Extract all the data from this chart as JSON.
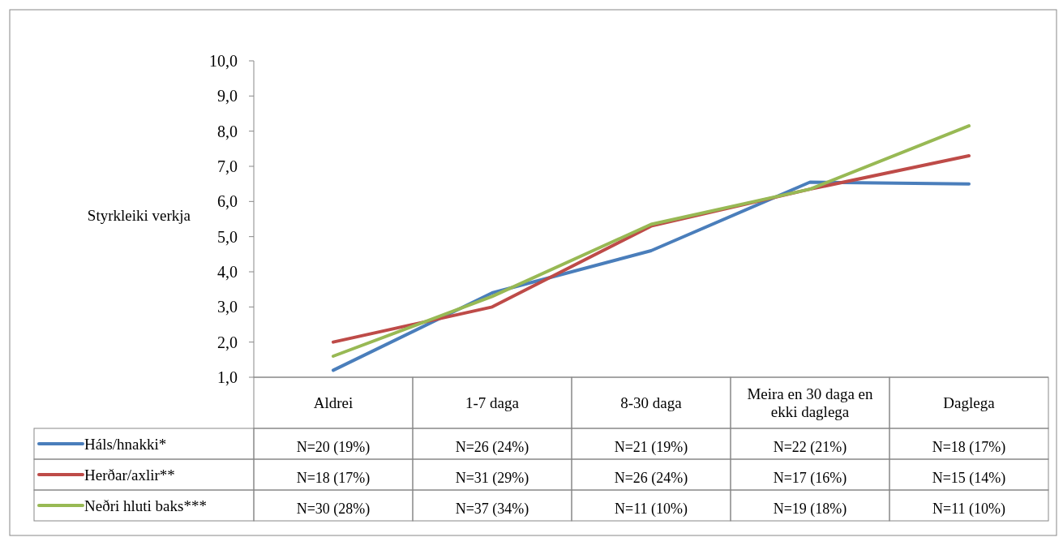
{
  "chart_data": {
    "type": "line",
    "ylabel": "Styrkleiki verkja",
    "categories": [
      "Aldrei",
      "1-7 daga",
      "8-30 daga",
      "Meira en 30 daga en ekki daglega",
      "Daglega"
    ],
    "series": [
      {
        "name": "Háls/hnakki*",
        "color": "#4a7ebb",
        "values": [
          1.2,
          3.4,
          4.6,
          6.55,
          6.5
        ]
      },
      {
        "name": "Herðar/axlir**",
        "color": "#be4b48",
        "values": [
          2.0,
          3.0,
          5.3,
          6.35,
          7.3
        ]
      },
      {
        "name": "Neðri hluti baks***",
        "color": "#98b954",
        "values": [
          1.6,
          3.3,
          5.35,
          6.35,
          8.15
        ]
      }
    ],
    "ylim": [
      1,
      10
    ],
    "yticks": [
      {
        "value": 1,
        "label": "1,0"
      },
      {
        "value": 2,
        "label": "2,0"
      },
      {
        "value": 3,
        "label": "3,0"
      },
      {
        "value": 4,
        "label": "4,0"
      },
      {
        "value": 5,
        "label": "5,0"
      },
      {
        "value": 6,
        "label": "6,0"
      },
      {
        "value": 7,
        "label": "7,0"
      },
      {
        "value": 8,
        "label": "8,0"
      },
      {
        "value": 9,
        "label": "9,0"
      },
      {
        "value": 10,
        "label": "10,0"
      }
    ],
    "grid": false,
    "legend": "bottom left",
    "marker": "none",
    "line_style": "solid",
    "annotations": [
      "N=20 (19%)",
      "N=26 (24%)",
      "N=21 (19%)",
      "N=22 (21%)",
      "N=18 (17%)",
      "N=18 (17%)",
      "N=31 (29%)",
      "N=26 (24%)",
      "N=17 (16%)",
      "N=15 (14%)",
      "N=30 (28%)",
      "N=37 (34%)",
      "N=11 (10%)",
      "N=19 (18%)",
      "N=11 (10%)"
    ]
  }
}
